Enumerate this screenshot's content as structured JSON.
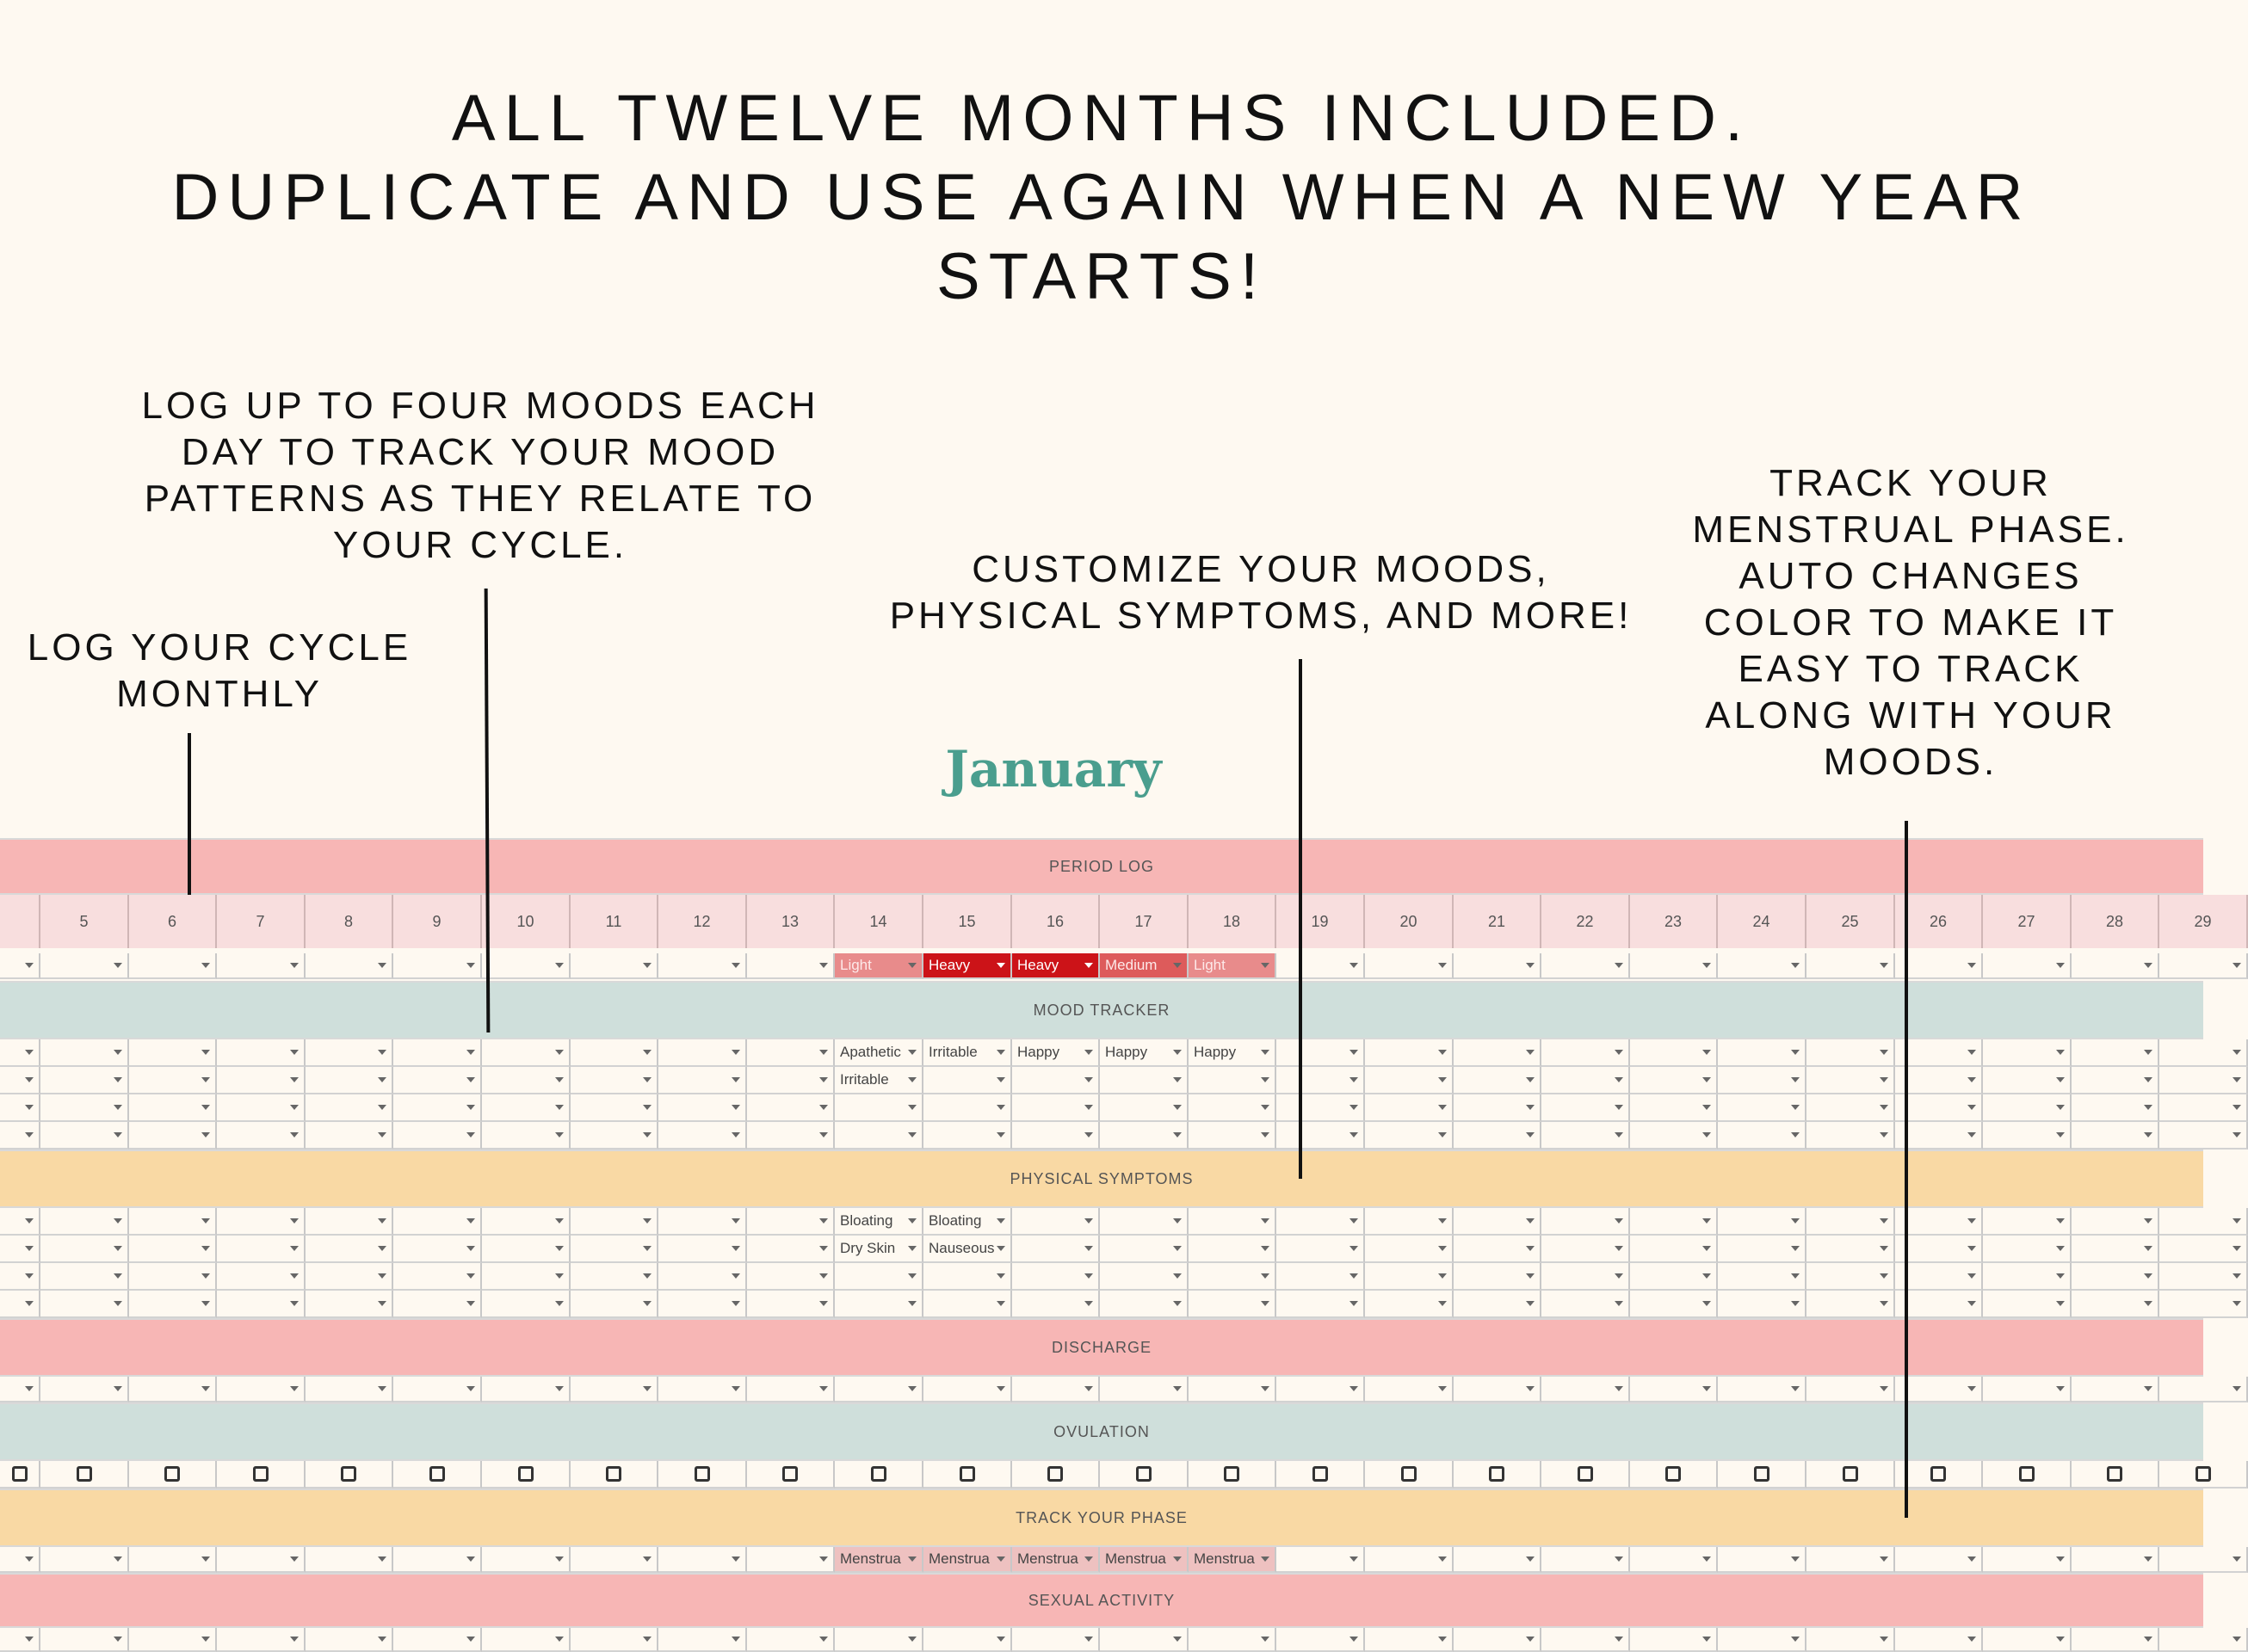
{
  "headline": {
    "line1": "ALL TWELVE MONTHS INCLUDED.",
    "line2": "DUPLICATE AND USE AGAIN WHEN A NEW YEAR STARTS!"
  },
  "callouts": {
    "cycle": [
      "LOG YOUR CYCLE",
      "MONTHLY"
    ],
    "moods": [
      "LOG UP TO FOUR MOODS EACH",
      "DAY TO TRACK YOUR MOOD",
      "PATTERNS AS THEY RELATE TO",
      "YOUR CYCLE."
    ],
    "customize": [
      "CUSTOMIZE YOUR MOODS,",
      "PHYSICAL SYMPTOMS, AND MORE!"
    ],
    "phase": [
      "TRACK YOUR",
      "MENSTRUAL PHASE.",
      "AUTO CHANGES",
      "COLOR TO MAKE IT",
      "EASY TO TRACK",
      "ALONG WITH YOUR",
      "MOODS."
    ]
  },
  "month": "January",
  "colors": {
    "period_band": "#f7b6b5",
    "mood_band": "#cfdfdb",
    "symptom_band": "#f9d9a4",
    "day_header": "#f8dede",
    "light": "#e88b8b",
    "heavy": "#cc1318",
    "medium": "#dd5b5b",
    "menstrual": "#eec1c0",
    "month_title": "#4a9e8e"
  },
  "days": [
    "",
    "5",
    "6",
    "7",
    "8",
    "9",
    "10",
    "11",
    "12",
    "13",
    "14",
    "15",
    "16",
    "17",
    "18",
    "19",
    "20",
    "21",
    "22",
    "23",
    "24",
    "25",
    "26",
    "27",
    "28",
    "29"
  ],
  "sections": {
    "period_log": "PERIOD LOG",
    "mood_tracker": "MOOD TRACKER",
    "physical_symptoms": "PHYSICAL SYMPTOMS",
    "discharge": "DISCHARGE",
    "ovulation": "OVULATION",
    "track_phase": "TRACK YOUR PHASE",
    "sexual_activity": "SEXUAL ACTIVITY"
  },
  "flow": {
    "14": "Light",
    "15": "Heavy",
    "16": "Heavy",
    "17": "Medium",
    "18": "Light"
  },
  "moods": [
    {
      "14": "Apathetic",
      "15": "Irritable",
      "16": "Happy",
      "17": "Happy",
      "18": "Happy"
    },
    {
      "14": "Irritable"
    },
    {},
    {}
  ],
  "symptoms": [
    {
      "14": "Bloating",
      "15": "Bloating"
    },
    {
      "14": "Dry Skin",
      "15": "Nauseous"
    },
    {},
    {}
  ],
  "phase": {
    "14": "Menstrua",
    "15": "Menstrua",
    "16": "Menstrua",
    "17": "Menstrua",
    "18": "Menstrua"
  }
}
